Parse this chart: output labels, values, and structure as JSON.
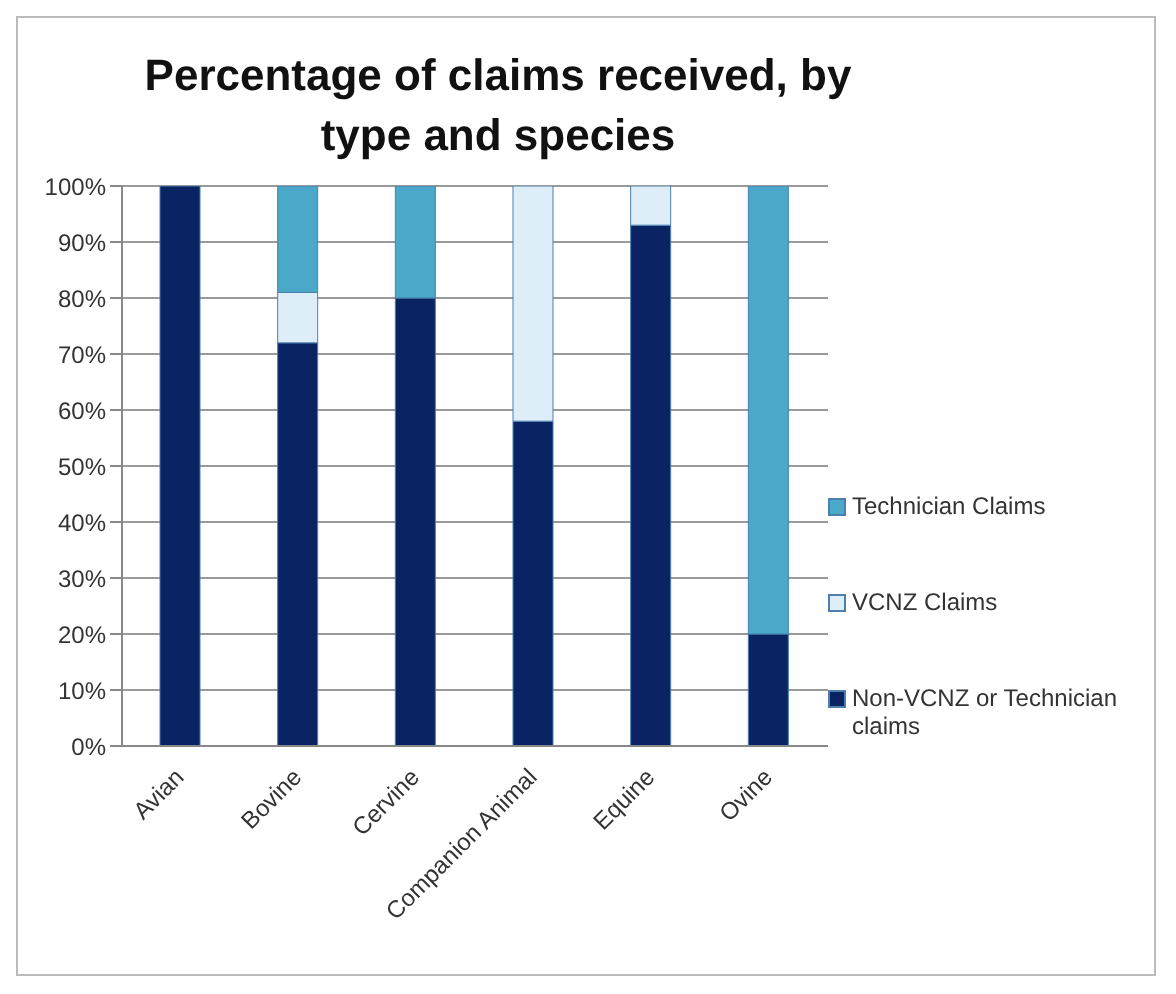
{
  "chart_data": {
    "type": "bar",
    "title": "Percentage of claims received, by type and species",
    "categories": [
      "Avian",
      "Bovine",
      "Cervine",
      "Companion Animal",
      "Equine",
      "Ovine"
    ],
    "stacked": true,
    "series": [
      {
        "name": "Non-VCNZ or Technician claims",
        "color": "#0a2463",
        "values": [
          100,
          72,
          80,
          58,
          93,
          20
        ]
      },
      {
        "name": "VCNZ Claims",
        "color": "#ddeef8",
        "values": [
          0,
          9,
          0,
          42,
          7,
          0
        ]
      },
      {
        "name": "Technician Claims",
        "color": "#4aa8c8",
        "values": [
          0,
          19,
          20,
          0,
          0,
          80
        ]
      }
    ],
    "ylim": [
      0,
      100
    ],
    "yticks": [
      {
        "value": 0,
        "label": "0%"
      },
      {
        "value": 10,
        "label": "10%"
      },
      {
        "value": 20,
        "label": "20%"
      },
      {
        "value": 30,
        "label": "30%"
      },
      {
        "value": 40,
        "label": "40%"
      },
      {
        "value": 50,
        "label": "50%"
      },
      {
        "value": 60,
        "label": "60%"
      },
      {
        "value": 70,
        "label": "70%"
      },
      {
        "value": 80,
        "label": "80%"
      },
      {
        "value": 90,
        "label": "90%"
      },
      {
        "value": 100,
        "label": "100%"
      }
    ],
    "grid": "y",
    "legend": "right"
  }
}
